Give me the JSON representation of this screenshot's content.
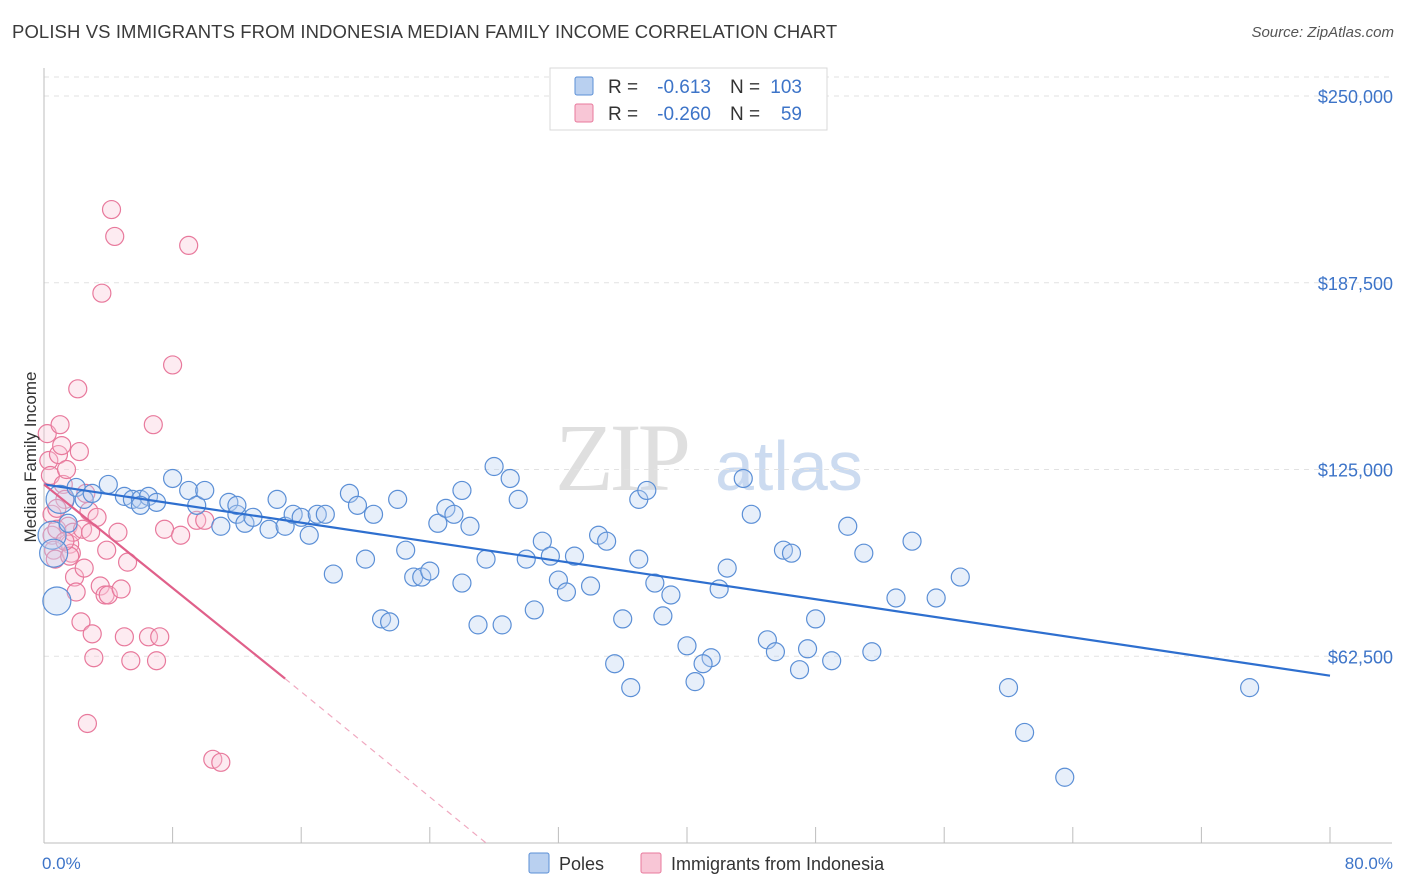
{
  "title": "POLISH VS IMMIGRANTS FROM INDONESIA MEDIAN FAMILY INCOME CORRELATION CHART",
  "source": "Source: ZipAtlas.com",
  "watermark": "ZIPatlas",
  "colors": {
    "poles": "#5b8fd6",
    "indonesia": "#e8799c",
    "poles_line": "#2e6fcf",
    "indonesia_line": "#e0608a",
    "value_text": "#3d74c8"
  },
  "legend_box": {
    "rows": [
      {
        "r_label": "R =",
        "r_value": "-0.613",
        "n_label": "N =",
        "n_value": "103"
      },
      {
        "r_label": "R =",
        "r_value": "-0.260",
        "n_label": "N =",
        "n_value": "59"
      }
    ]
  },
  "chart_data": {
    "type": "scatter",
    "title": "POLISH VS IMMIGRANTS FROM INDONESIA MEDIAN FAMILY INCOME CORRELATION CHART",
    "xlabel": "",
    "ylabel": "Median Family Income",
    "xlim": [
      0,
      80
    ],
    "ylim": [
      0,
      250000
    ],
    "x_tick_labels": [
      "0.0%",
      "80.0%"
    ],
    "y_tick_labels": [
      "$62,500",
      "$125,000",
      "$187,500",
      "$250,000"
    ],
    "y_ticks": [
      62500,
      125000,
      187500,
      250000
    ],
    "grid": "horizontal dashed",
    "legend_position": "bottom-center",
    "series": [
      {
        "name": "Poles",
        "r": -0.613,
        "n": 103,
        "trend": {
          "x": [
            0,
            80
          ],
          "y": [
            120000,
            56000
          ]
        },
        "points": [
          [
            0.5,
            103000
          ],
          [
            0.6,
            97000
          ],
          [
            0.8,
            81000
          ],
          [
            1.0,
            115000
          ],
          [
            1.5,
            107000
          ],
          [
            2.0,
            119000
          ],
          [
            2.5,
            115000
          ],
          [
            3.0,
            117000
          ],
          [
            4.0,
            120000
          ],
          [
            5.0,
            116000
          ],
          [
            5.5,
            115000
          ],
          [
            6.0,
            115000
          ],
          [
            6.5,
            116000
          ],
          [
            7.0,
            114000
          ],
          [
            8.0,
            122000
          ],
          [
            9.0,
            118000
          ],
          [
            9.5,
            113000
          ],
          [
            10.0,
            118000
          ],
          [
            11.0,
            106000
          ],
          [
            11.5,
            114000
          ],
          [
            12.0,
            110000
          ],
          [
            12.5,
            107000
          ],
          [
            13.0,
            109000
          ],
          [
            14.0,
            105000
          ],
          [
            14.5,
            115000
          ],
          [
            15.0,
            106000
          ],
          [
            15.5,
            110000
          ],
          [
            16.0,
            109000
          ],
          [
            16.5,
            103000
          ],
          [
            17.0,
            110000
          ],
          [
            17.5,
            110000
          ],
          [
            18.0,
            90000
          ],
          [
            19.0,
            117000
          ],
          [
            19.5,
            113000
          ],
          [
            20.0,
            95000
          ],
          [
            20.5,
            110000
          ],
          [
            21.0,
            75000
          ],
          [
            21.5,
            74000
          ],
          [
            22.0,
            115000
          ],
          [
            22.5,
            98000
          ],
          [
            23.0,
            89000
          ],
          [
            23.5,
            89000
          ],
          [
            24.0,
            91000
          ],
          [
            24.5,
            107000
          ],
          [
            25.0,
            112000
          ],
          [
            25.5,
            110000
          ],
          [
            26.0,
            87000
          ],
          [
            26.5,
            106000
          ],
          [
            27.0,
            73000
          ],
          [
            27.5,
            95000
          ],
          [
            28.0,
            126000
          ],
          [
            28.5,
            73000
          ],
          [
            29.0,
            122000
          ],
          [
            29.5,
            115000
          ],
          [
            30.0,
            95000
          ],
          [
            30.5,
            78000
          ],
          [
            31.0,
            101000
          ],
          [
            31.5,
            96000
          ],
          [
            32.0,
            88000
          ],
          [
            32.5,
            84000
          ],
          [
            33.0,
            96000
          ],
          [
            34.0,
            86000
          ],
          [
            34.5,
            103000
          ],
          [
            35.0,
            101000
          ],
          [
            35.5,
            60000
          ],
          [
            36.0,
            75000
          ],
          [
            36.5,
            52000
          ],
          [
            37.0,
            115000
          ],
          [
            37.5,
            118000
          ],
          [
            38.0,
            87000
          ],
          [
            38.5,
            76000
          ],
          [
            39.0,
            83000
          ],
          [
            40.0,
            66000
          ],
          [
            40.5,
            54000
          ],
          [
            41.5,
            62000
          ],
          [
            42.0,
            85000
          ],
          [
            42.5,
            92000
          ],
          [
            43.5,
            122000
          ],
          [
            44.0,
            110000
          ],
          [
            45.0,
            68000
          ],
          [
            45.5,
            64000
          ],
          [
            46.0,
            98000
          ],
          [
            46.5,
            97000
          ],
          [
            47.0,
            58000
          ],
          [
            47.5,
            65000
          ],
          [
            49.0,
            61000
          ],
          [
            50.0,
            106000
          ],
          [
            51.0,
            97000
          ],
          [
            51.5,
            64000
          ],
          [
            53.0,
            82000
          ],
          [
            54.0,
            101000
          ],
          [
            55.5,
            82000
          ],
          [
            57.0,
            89000
          ],
          [
            60.0,
            52000
          ],
          [
            61.0,
            37000
          ],
          [
            63.5,
            22000
          ],
          [
            75.0,
            52000
          ],
          [
            48.0,
            75000
          ],
          [
            41.0,
            60000
          ],
          [
            37.0,
            95000
          ],
          [
            26.0,
            118000
          ],
          [
            12.0,
            113000
          ],
          [
            6.0,
            113000
          ]
        ]
      },
      {
        "name": "Immigrants from Indonesia",
        "r": -0.26,
        "n": 59,
        "trend": {
          "x": [
            0,
            15
          ],
          "y": [
            120000,
            55000
          ]
        },
        "trend_dashed": {
          "x": [
            15,
            27.5
          ],
          "y": [
            55000,
            0
          ]
        },
        "points": [
          [
            0.2,
            137000
          ],
          [
            0.3,
            128000
          ],
          [
            0.4,
            123000
          ],
          [
            0.5,
            110000
          ],
          [
            0.5,
            103000
          ],
          [
            0.6,
            98000
          ],
          [
            0.7,
            95000
          ],
          [
            0.8,
            105000
          ],
          [
            0.9,
            130000
          ],
          [
            1.0,
            140000
          ],
          [
            1.1,
            133000
          ],
          [
            1.2,
            120000
          ],
          [
            1.3,
            115000
          ],
          [
            1.4,
            125000
          ],
          [
            1.5,
            106000
          ],
          [
            1.6,
            100000
          ],
          [
            1.7,
            97000
          ],
          [
            1.8,
            104000
          ],
          [
            1.9,
            89000
          ],
          [
            2.0,
            84000
          ],
          [
            2.1,
            152000
          ],
          [
            2.2,
            131000
          ],
          [
            2.3,
            74000
          ],
          [
            2.4,
            105000
          ],
          [
            2.5,
            92000
          ],
          [
            2.6,
            117000
          ],
          [
            2.7,
            40000
          ],
          [
            2.8,
            111000
          ],
          [
            3.0,
            70000
          ],
          [
            3.1,
            62000
          ],
          [
            3.3,
            109000
          ],
          [
            3.5,
            86000
          ],
          [
            3.6,
            184000
          ],
          [
            3.8,
            83000
          ],
          [
            4.0,
            83000
          ],
          [
            4.2,
            212000
          ],
          [
            4.4,
            203000
          ],
          [
            4.6,
            104000
          ],
          [
            4.8,
            85000
          ],
          [
            5.0,
            69000
          ],
          [
            5.2,
            94000
          ],
          [
            5.4,
            61000
          ],
          [
            6.5,
            69000
          ],
          [
            6.8,
            140000
          ],
          [
            7.0,
            61000
          ],
          [
            7.2,
            69000
          ],
          [
            7.5,
            105000
          ],
          [
            8.0,
            160000
          ],
          [
            8.5,
            103000
          ],
          [
            9.0,
            200000
          ],
          [
            9.5,
            108000
          ],
          [
            10.0,
            108000
          ],
          [
            10.5,
            28000
          ],
          [
            11.0,
            27000
          ],
          [
            3.9,
            98000
          ],
          [
            2.9,
            104000
          ],
          [
            1.6,
            96000
          ],
          [
            0.8,
            112000
          ],
          [
            1.3,
            101000
          ]
        ]
      }
    ]
  },
  "legend": {
    "items": [
      {
        "label": "Poles"
      },
      {
        "label": "Immigrants from Indonesia"
      }
    ]
  }
}
